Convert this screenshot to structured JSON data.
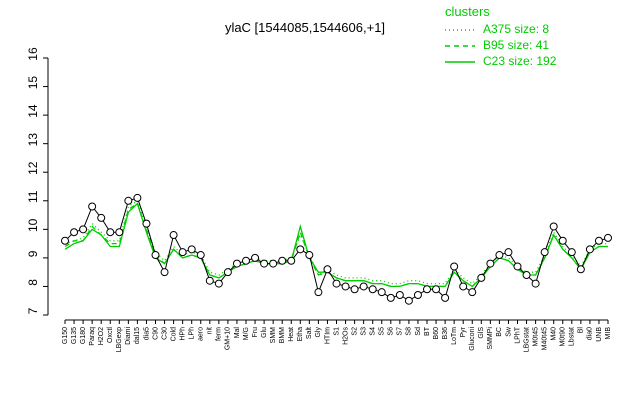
{
  "chart_data": {
    "type": "line",
    "title": "ylaC [1544085,1544606,+1]",
    "legend_title": "clusters",
    "legend_position": "top-right",
    "color": "#000000",
    "categories": [
      "G150",
      "G135",
      "G180",
      "Paraq",
      "H2O2",
      "Oxctl",
      "LBGexp",
      "Diami",
      "dal15",
      "dia5",
      "C90",
      "C30",
      "Cold",
      "HPh",
      "LPh",
      "aero",
      "nit",
      "ferm",
      "GM+10",
      "Mal",
      "M/G",
      "Fru",
      "Glu",
      "SMM",
      "BMM",
      "Heat",
      "Etha",
      "Salt",
      "Gly",
      "HTIm",
      "S1",
      "H2Os",
      "S2",
      "S3",
      "S4",
      "S5",
      "S6",
      "S7",
      "S8",
      "Sd",
      "BT",
      "B60",
      "B36",
      "LoTm",
      "Pyr",
      "Gluconi",
      "GlS",
      "SMMPi",
      "BC",
      "Sw",
      "LPhT",
      "LBGstat",
      "M0t45",
      "M40t45",
      "M40",
      "M0t90",
      "Lbstat",
      "Bl",
      "dia0",
      "UNB",
      "MIB"
    ],
    "values": [
      9.6,
      9.9,
      10.0,
      10.8,
      10.4,
      9.9,
      9.9,
      11.0,
      11.1,
      10.2,
      9.1,
      8.5,
      9.8,
      9.2,
      9.3,
      9.1,
      8.2,
      8.1,
      8.5,
      8.8,
      8.9,
      9.0,
      8.8,
      8.8,
      8.9,
      8.9,
      9.3,
      9.1,
      7.8,
      8.6,
      8.1,
      8.0,
      7.9,
      8.0,
      7.9,
      7.8,
      7.6,
      7.7,
      7.5,
      7.7,
      7.9,
      7.9,
      7.6,
      8.7,
      8.0,
      7.8,
      8.3,
      8.8,
      9.1,
      9.2,
      8.7,
      8.4,
      8.1,
      9.2,
      10.1,
      9.6,
      9.2,
      8.6,
      9.3,
      9.6,
      9.7
    ],
    "series": [
      {
        "name": "A375 size: 8",
        "color": "#00cc00",
        "dash": "dotted",
        "values": [
          9.5,
          9.6,
          9.7,
          10.2,
          9.9,
          9.6,
          9.6,
          10.8,
          11.0,
          10.1,
          9.2,
          8.9,
          9.4,
          9.1,
          9.2,
          9.1,
          8.5,
          8.4,
          8.6,
          8.8,
          8.9,
          9.0,
          8.9,
          8.9,
          8.9,
          9.0,
          9.8,
          9.1,
          8.4,
          8.6,
          8.4,
          8.3,
          8.3,
          8.3,
          8.2,
          8.2,
          8.1,
          8.1,
          8.2,
          8.2,
          8.1,
          8.1,
          8.1,
          8.6,
          8.3,
          8.1,
          8.4,
          8.8,
          9.1,
          9.0,
          8.7,
          8.5,
          8.5,
          9.1,
          9.9,
          9.4,
          9.1,
          8.7,
          9.3,
          9.5,
          9.5
        ]
      },
      {
        "name": "B95 size: 41",
        "color": "#00cc00",
        "dash": "dashed",
        "values": [
          9.4,
          9.6,
          9.6,
          10.1,
          9.8,
          9.5,
          9.5,
          10.7,
          10.9,
          10.0,
          9.1,
          8.8,
          9.3,
          9.0,
          9.1,
          9.0,
          8.4,
          8.3,
          8.5,
          8.7,
          8.8,
          8.9,
          8.8,
          8.8,
          8.8,
          8.9,
          9.9,
          9.0,
          8.4,
          8.5,
          8.3,
          8.2,
          8.2,
          8.2,
          8.1,
          8.1,
          8.0,
          8.0,
          8.1,
          8.1,
          8.0,
          8.0,
          8.0,
          8.5,
          8.2,
          8.0,
          8.3,
          8.7,
          9.0,
          8.9,
          8.6,
          8.4,
          8.4,
          9.0,
          9.8,
          9.3,
          9.0,
          8.6,
          9.2,
          9.4,
          9.4
        ]
      },
      {
        "name": "C23 size: 192",
        "color": "#00cc00",
        "dash": "solid",
        "values": [
          9.3,
          9.5,
          9.6,
          10.0,
          9.8,
          9.4,
          9.4,
          10.6,
          10.9,
          9.9,
          9.0,
          8.8,
          9.3,
          9.0,
          9.1,
          9.0,
          8.4,
          8.3,
          8.5,
          8.7,
          8.8,
          8.9,
          8.8,
          8.8,
          8.8,
          8.9,
          10.1,
          9.0,
          8.5,
          8.5,
          8.3,
          8.2,
          8.2,
          8.2,
          8.1,
          8.1,
          8.0,
          8.0,
          8.1,
          8.1,
          8.0,
          8.0,
          8.0,
          8.5,
          8.2,
          8.0,
          8.3,
          8.7,
          9.0,
          8.9,
          8.6,
          8.4,
          8.4,
          9.0,
          9.8,
          9.3,
          9.0,
          8.6,
          9.2,
          9.4,
          9.4
        ]
      }
    ],
    "ylim": [
      7,
      16
    ],
    "yticks": [
      7,
      8,
      9,
      10,
      11,
      12,
      13,
      14,
      15,
      16
    ]
  }
}
